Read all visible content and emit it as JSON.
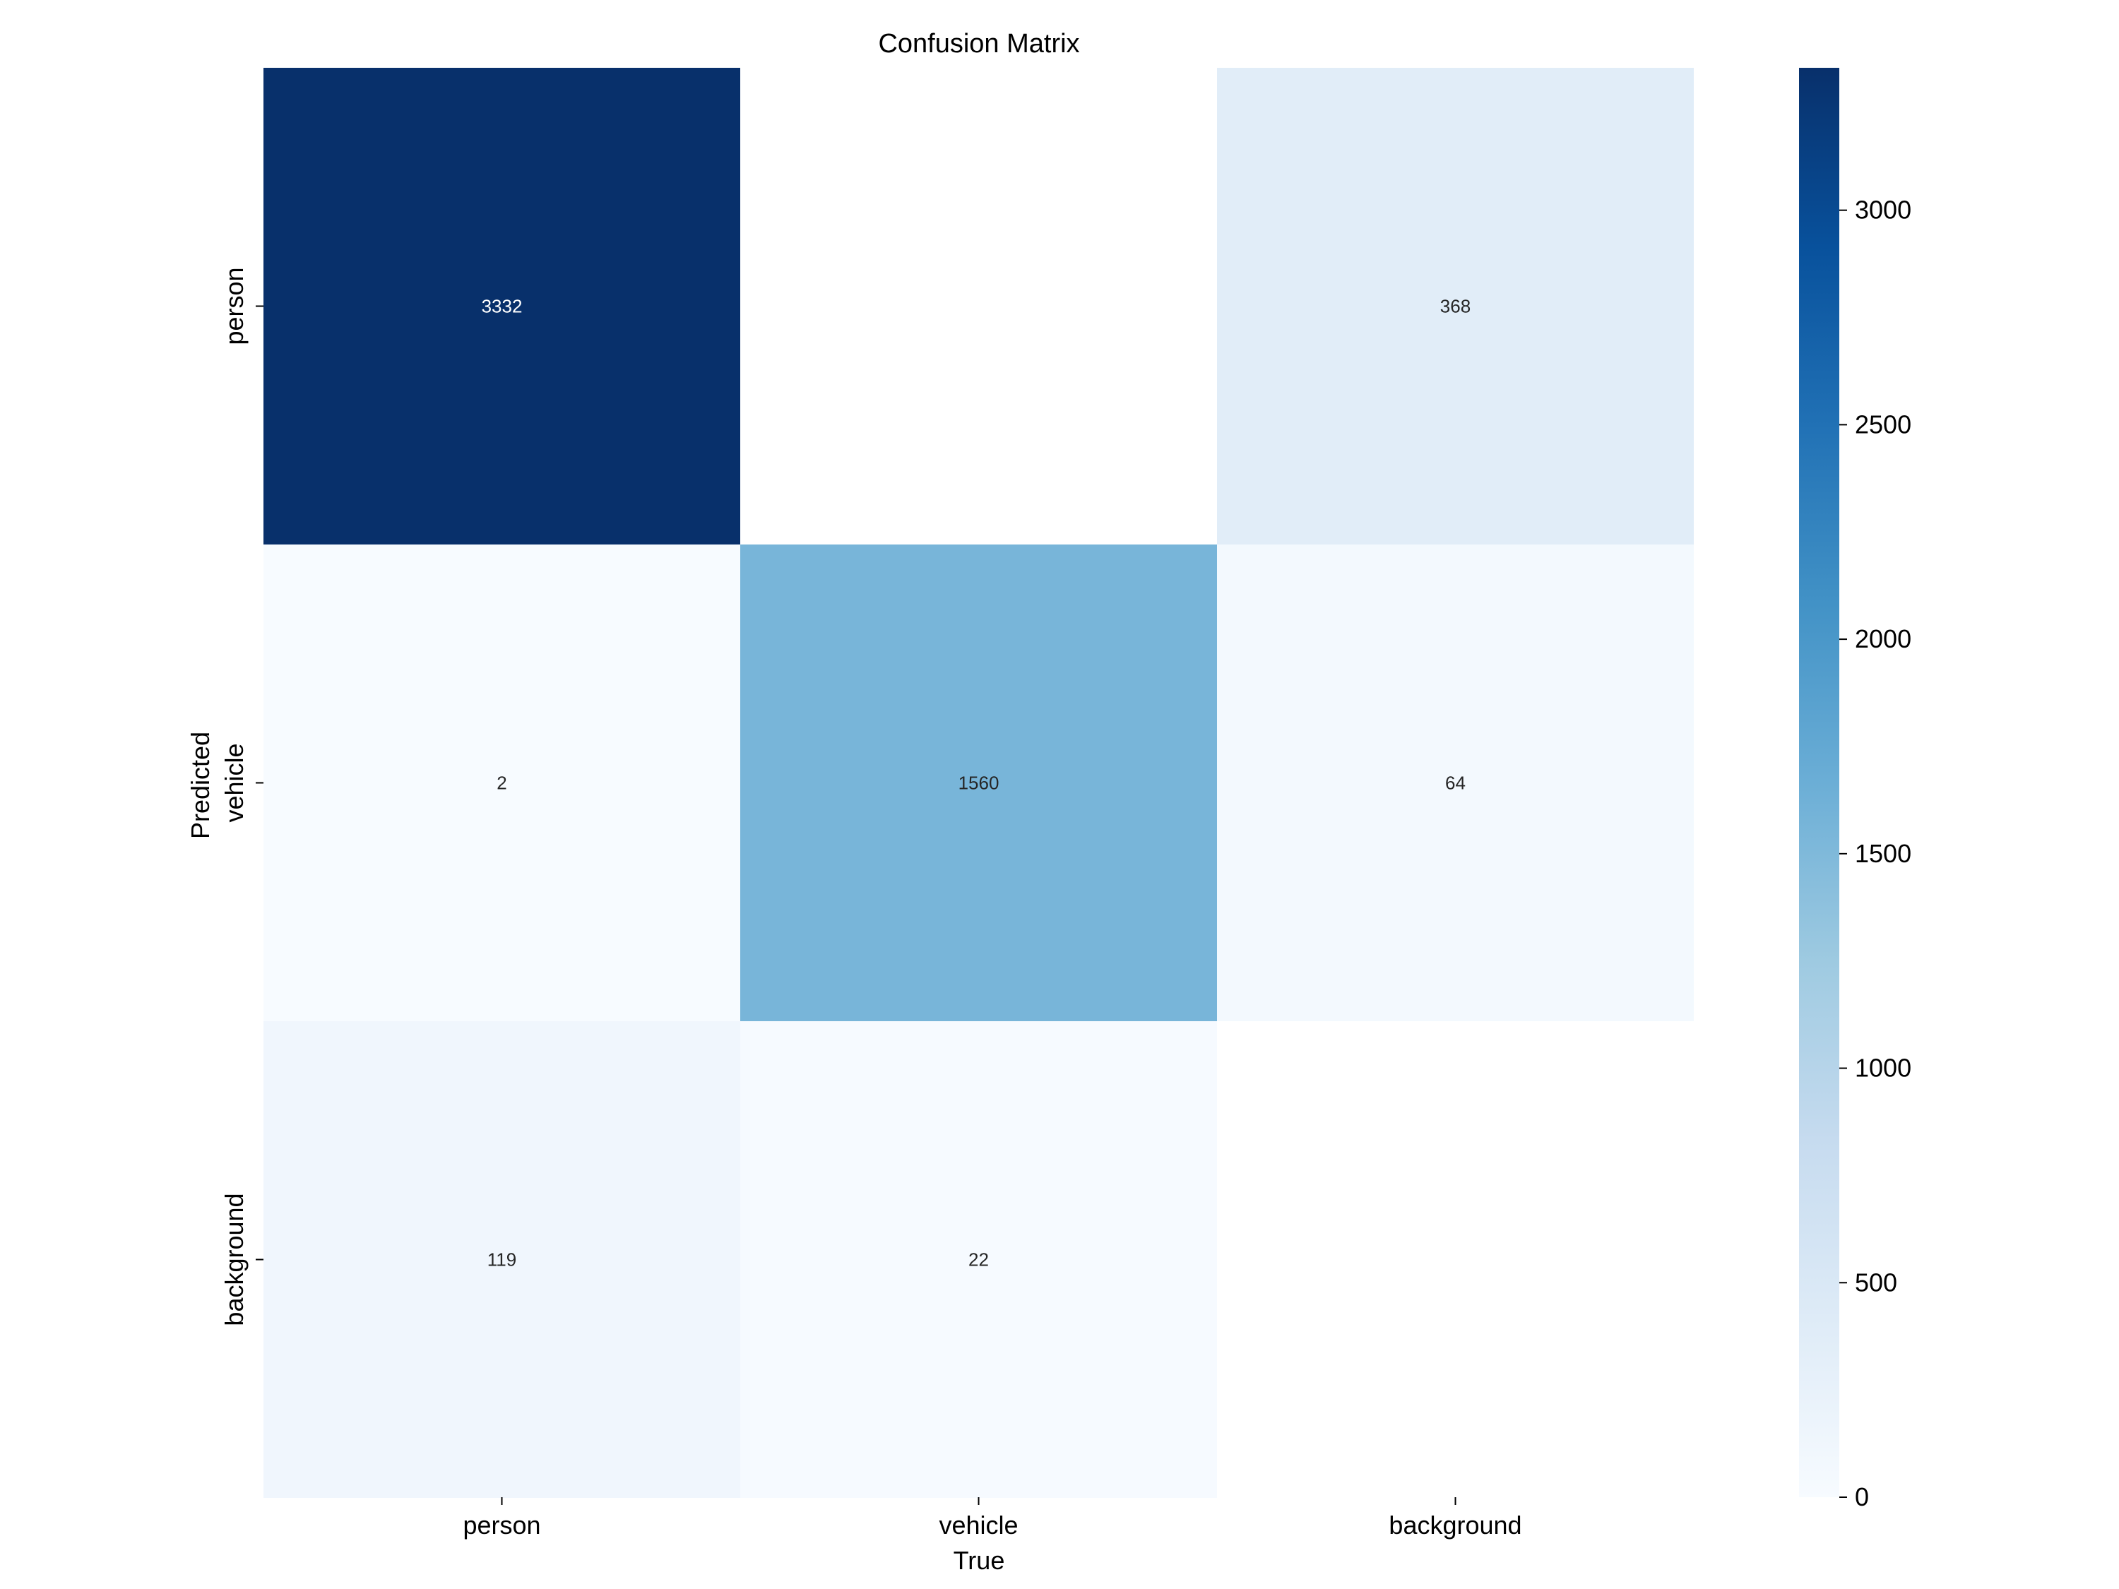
{
  "chart_data": {
    "type": "heatmap",
    "title": "Confusion Matrix",
    "xlabel": "True",
    "ylabel": "Predicted",
    "x_categories": [
      "person",
      "vehicle",
      "background"
    ],
    "y_categories": [
      "person",
      "vehicle",
      "background"
    ],
    "values": [
      [
        3332,
        null,
        368
      ],
      [
        2,
        1560,
        64
      ],
      [
        119,
        22,
        null
      ]
    ],
    "colormap": "Blues",
    "colorbar": {
      "min": 0,
      "max": 3332,
      "ticks": [
        0,
        500,
        1000,
        1500,
        2000,
        2500,
        3000
      ]
    },
    "grid": false
  }
}
